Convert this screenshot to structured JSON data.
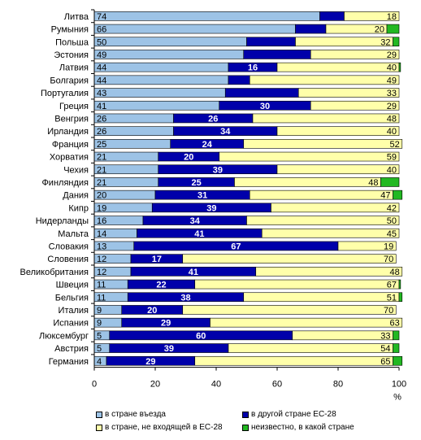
{
  "chart_data": {
    "type": "bar",
    "orientation": "horizontal",
    "stacked": true,
    "categories": [
      "Литва",
      "Румыния",
      "Польша",
      "Эстония",
      "Латвия",
      "Болгария",
      "Португалия",
      "Греция",
      "Венгрия",
      "Ирландия",
      "Франция",
      "Хорватия",
      "Чехия",
      "Финляндия",
      "Дания",
      "Кипр",
      "Нидерланды",
      "Мальта",
      "Словакия",
      "Словения",
      "Великобритания",
      "Швеция",
      "Бельгия",
      "Италия",
      "Испания",
      "Люксембург",
      "Австрия",
      "Германия"
    ],
    "series": [
      {
        "name": "в стране въезда",
        "color": "#9DC3E6",
        "values": [
          74,
          66,
          50,
          49,
          44,
          44,
          43,
          41,
          26,
          26,
          25,
          21,
          21,
          21,
          20,
          19,
          16,
          14,
          13,
          12,
          12,
          11,
          11,
          9,
          9,
          5,
          5,
          4
        ]
      },
      {
        "name": "в другой стране ЕС-28",
        "color": "#0000AA",
        "values": [
          8,
          10,
          16,
          22,
          16,
          7,
          24,
          30,
          26,
          34,
          24,
          20,
          39,
          25,
          31,
          39,
          34,
          41,
          67,
          17,
          41,
          22,
          38,
          20,
          29,
          60,
          39,
          29
        ]
      },
      {
        "name": "в стране, не входящей в ЕС-28",
        "color": "#FFFFAA",
        "values": [
          18,
          20,
          32,
          29,
          40,
          49,
          33,
          29,
          48,
          40,
          52,
          59,
          40,
          48,
          47,
          42,
          50,
          45,
          19,
          70,
          48,
          67,
          51,
          70,
          63,
          33,
          54,
          65
        ]
      },
      {
        "name": "неизвестно, в какой стране",
        "color": "#22B822",
        "values": [
          0,
          4,
          2,
          0,
          0.5,
          0,
          0,
          0,
          0,
          0,
          0,
          0,
          0,
          6,
          3,
          0,
          0,
          0,
          0,
          0,
          0,
          0.5,
          1,
          0,
          0,
          2,
          2,
          3
        ]
      }
    ],
    "labels": [
      [
        "74",
        "",
        "18",
        ""
      ],
      [
        "66",
        "",
        "20",
        ""
      ],
      [
        "50",
        "",
        "32",
        ""
      ],
      [
        "49",
        "",
        "29",
        ""
      ],
      [
        "44",
        "16",
        "40",
        ""
      ],
      [
        "44",
        "",
        "49",
        ""
      ],
      [
        "43",
        "",
        "33",
        ""
      ],
      [
        "41",
        "30",
        "29",
        ""
      ],
      [
        "26",
        "26",
        "48",
        ""
      ],
      [
        "26",
        "34",
        "40",
        ""
      ],
      [
        "25",
        "24",
        "52",
        ""
      ],
      [
        "21",
        "20",
        "59",
        ""
      ],
      [
        "21",
        "39",
        "40",
        ""
      ],
      [
        "21",
        "25",
        "48",
        ""
      ],
      [
        "20",
        "31",
        "47",
        ""
      ],
      [
        "19",
        "39",
        "42",
        ""
      ],
      [
        "16",
        "34",
        "50",
        ""
      ],
      [
        "14",
        "41",
        "45",
        ""
      ],
      [
        "13",
        "67",
        "19",
        ""
      ],
      [
        "12",
        "17",
        "70",
        ""
      ],
      [
        "12",
        "41",
        "48",
        ""
      ],
      [
        "11",
        "22",
        "67",
        ""
      ],
      [
        "11",
        "38",
        "51",
        ""
      ],
      [
        "9",
        "20",
        "70",
        ""
      ],
      [
        "9",
        "29",
        "63",
        ""
      ],
      [
        "5",
        "60",
        "33",
        ""
      ],
      [
        "5",
        "39",
        "54",
        ""
      ],
      [
        "4",
        "29",
        "65",
        ""
      ]
    ],
    "xticks": [
      "0",
      "20",
      "40",
      "60",
      "80",
      "100"
    ],
    "xlim": [
      0,
      100
    ],
    "xunit": "%",
    "grid": false,
    "legend_position": "bottom"
  }
}
